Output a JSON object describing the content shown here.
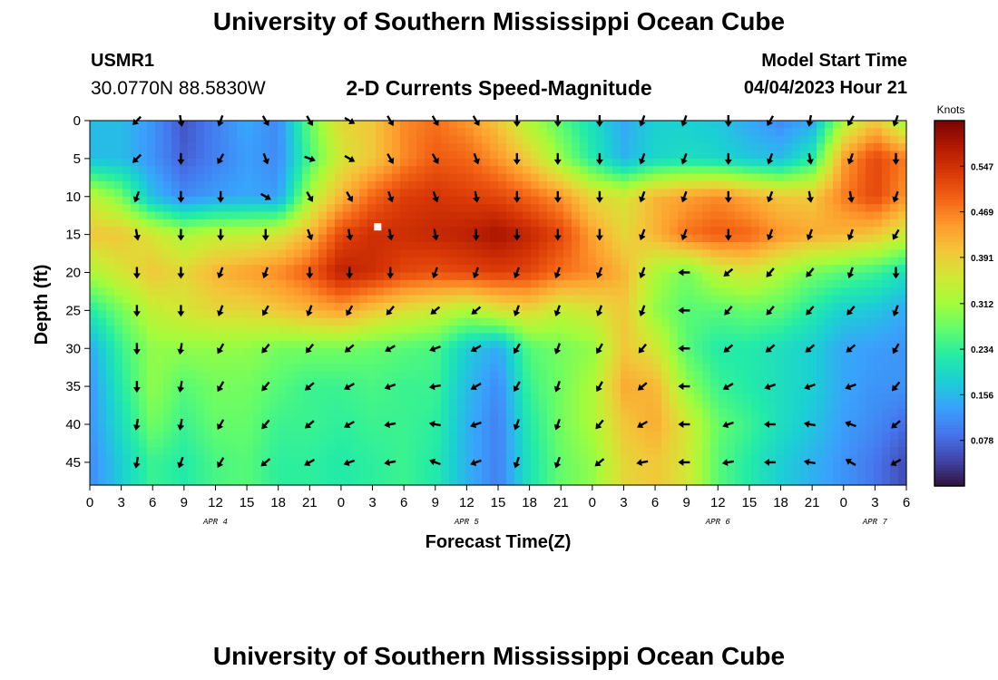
{
  "header": {
    "title": "University of Southern Mississippi Ocean Cube",
    "station": "USMR1",
    "coords": "30.0770N  88.5830W",
    "subtitle": "2-D Currents Speed-Magnitude",
    "model_label": "Model Start Time",
    "model_time": "04/04/2023 Hour 21"
  },
  "footer": {
    "title": "University of Southern Mississippi Ocean Cube"
  },
  "chart_data": {
    "type": "heatmap",
    "title": "2-D Currents Speed-Magnitude",
    "xlabel": "Forecast Time(Z)",
    "ylabel": "Depth (ft)",
    "x_tick_labels": [
      "0",
      "3",
      "6",
      "9",
      "12",
      "15",
      "18",
      "21",
      "0",
      "3",
      "6",
      "9",
      "12",
      "15",
      "18",
      "21",
      "0",
      "3",
      "6",
      "9",
      "12",
      "15",
      "18",
      "21",
      "0",
      "3",
      "6"
    ],
    "x_day_labels": [
      "APR 4",
      "APR 5",
      "APR 6",
      "APR 7"
    ],
    "x_day_label_hours": [
      12,
      36,
      60,
      75
    ],
    "x_range_hours": [
      0,
      78
    ],
    "y_tick_labels": [
      "0",
      "5",
      "10",
      "15",
      "20",
      "25",
      "30",
      "35",
      "40",
      "45"
    ],
    "y_range_ft": [
      0,
      48
    ],
    "colorbar": {
      "label": "Knots",
      "ticks": [
        "0.078",
        "0.156",
        "0.234",
        "0.312",
        "0.391",
        "0.469",
        "0.547"
      ],
      "range": [
        0,
        0.625
      ]
    },
    "colors": {
      "scale": [
        "#30123b",
        "#4145ab",
        "#4675ed",
        "#39a2fc",
        "#1bcfd4",
        "#24eca6",
        "#61fc6c",
        "#a4fc3b",
        "#d1e834",
        "#f3c63a",
        "#fe9b2d",
        "#f36315",
        "#d93806",
        "#b11901",
        "#7a0403"
      ],
      "arrow": "#000000",
      "marker": "#ffffff"
    },
    "grid_hours": [
      0,
      3,
      6,
      9,
      12,
      15,
      18,
      21,
      24,
      27,
      30,
      33,
      36,
      39,
      42,
      45,
      48,
      51,
      54,
      57,
      60,
      63,
      66,
      69,
      72,
      75,
      78
    ],
    "grid_depths_ft": [
      0,
      5,
      10,
      15,
      20,
      25,
      30,
      35,
      40,
      45
    ],
    "speed_knots": [
      [
        0.16,
        0.16,
        0.12,
        0.06,
        0.1,
        0.14,
        0.11,
        0.27,
        0.38,
        0.4,
        0.46,
        0.48,
        0.45,
        0.4,
        0.32,
        0.26,
        0.2,
        0.14,
        0.18,
        0.18,
        0.17,
        0.14,
        0.11,
        0.14,
        0.32,
        0.4,
        0.3
      ],
      [
        0.16,
        0.16,
        0.12,
        0.07,
        0.1,
        0.13,
        0.11,
        0.25,
        0.36,
        0.4,
        0.46,
        0.5,
        0.49,
        0.45,
        0.39,
        0.3,
        0.22,
        0.15,
        0.19,
        0.2,
        0.19,
        0.17,
        0.16,
        0.22,
        0.44,
        0.52,
        0.47
      ],
      [
        0.34,
        0.28,
        0.16,
        0.11,
        0.13,
        0.14,
        0.13,
        0.32,
        0.42,
        0.49,
        0.53,
        0.54,
        0.53,
        0.52,
        0.49,
        0.45,
        0.38,
        0.36,
        0.42,
        0.44,
        0.46,
        0.43,
        0.4,
        0.4,
        0.47,
        0.52,
        0.45
      ],
      [
        0.4,
        0.4,
        0.36,
        0.32,
        0.34,
        0.34,
        0.36,
        0.42,
        0.52,
        0.55,
        0.55,
        0.56,
        0.57,
        0.59,
        0.56,
        0.52,
        0.44,
        0.38,
        0.42,
        0.48,
        0.5,
        0.49,
        0.45,
        0.43,
        0.42,
        0.4,
        0.35
      ],
      [
        0.32,
        0.36,
        0.4,
        0.38,
        0.42,
        0.44,
        0.46,
        0.5,
        0.57,
        0.55,
        0.52,
        0.51,
        0.52,
        0.53,
        0.52,
        0.48,
        0.46,
        0.42,
        0.32,
        0.28,
        0.34,
        0.36,
        0.32,
        0.28,
        0.26,
        0.24,
        0.2
      ],
      [
        0.22,
        0.28,
        0.34,
        0.36,
        0.38,
        0.38,
        0.4,
        0.42,
        0.44,
        0.4,
        0.37,
        0.35,
        0.32,
        0.36,
        0.38,
        0.34,
        0.36,
        0.4,
        0.3,
        0.26,
        0.26,
        0.27,
        0.26,
        0.22,
        0.18,
        0.17,
        0.14
      ],
      [
        0.14,
        0.24,
        0.3,
        0.3,
        0.3,
        0.3,
        0.28,
        0.28,
        0.28,
        0.27,
        0.26,
        0.25,
        0.18,
        0.14,
        0.26,
        0.28,
        0.3,
        0.4,
        0.36,
        0.26,
        0.22,
        0.22,
        0.2,
        0.18,
        0.14,
        0.13,
        0.12
      ],
      [
        0.12,
        0.22,
        0.3,
        0.26,
        0.28,
        0.28,
        0.26,
        0.24,
        0.24,
        0.25,
        0.24,
        0.24,
        0.16,
        0.11,
        0.24,
        0.28,
        0.32,
        0.43,
        0.42,
        0.3,
        0.24,
        0.22,
        0.2,
        0.18,
        0.14,
        0.12,
        0.12
      ],
      [
        0.12,
        0.2,
        0.28,
        0.24,
        0.27,
        0.27,
        0.24,
        0.24,
        0.23,
        0.24,
        0.24,
        0.23,
        0.15,
        0.1,
        0.22,
        0.28,
        0.32,
        0.4,
        0.43,
        0.36,
        0.27,
        0.24,
        0.2,
        0.17,
        0.13,
        0.11,
        0.08
      ],
      [
        0.11,
        0.18,
        0.24,
        0.22,
        0.25,
        0.26,
        0.23,
        0.23,
        0.22,
        0.23,
        0.24,
        0.22,
        0.15,
        0.1,
        0.21,
        0.27,
        0.3,
        0.38,
        0.4,
        0.36,
        0.26,
        0.22,
        0.18,
        0.15,
        0.12,
        0.09,
        0.05
      ]
    ],
    "arrow_hours": [
      4.5,
      8.7,
      12.5,
      16.8,
      21.0,
      24.8,
      28.7,
      33.0,
      36.9,
      40.8,
      44.7,
      48.7,
      52.8,
      56.8,
      61.0,
      65.0,
      68.8,
      72.7,
      77.0
    ],
    "arrow_direction_deg": [
      [
        225,
        170,
        200,
        150,
        150,
        120,
        150,
        150,
        150,
        180,
        180,
        180,
        200,
        200,
        180,
        210,
        190,
        210,
        200
      ],
      [
        225,
        180,
        210,
        160,
        110,
        120,
        150,
        150,
        160,
        180,
        180,
        180,
        200,
        200,
        180,
        200,
        170,
        200,
        180
      ],
      [
        200,
        180,
        180,
        120,
        150,
        150,
        160,
        160,
        170,
        180,
        180,
        180,
        200,
        200,
        180,
        200,
        170,
        170,
        200
      ],
      [
        170,
        180,
        180,
        180,
        160,
        170,
        170,
        170,
        180,
        180,
        180,
        180,
        200,
        200,
        180,
        200,
        200,
        200,
        210
      ],
      [
        180,
        180,
        200,
        200,
        180,
        180,
        180,
        200,
        200,
        200,
        200,
        200,
        200,
        270,
        230,
        220,
        220,
        200,
        180
      ],
      [
        180,
        180,
        200,
        210,
        200,
        210,
        220,
        230,
        230,
        200,
        200,
        200,
        200,
        270,
        220,
        220,
        220,
        220,
        200
      ],
      [
        180,
        190,
        210,
        220,
        220,
        230,
        240,
        250,
        240,
        210,
        200,
        210,
        220,
        270,
        230,
        230,
        230,
        230,
        210
      ],
      [
        180,
        190,
        210,
        220,
        230,
        240,
        250,
        260,
        240,
        210,
        200,
        210,
        230,
        270,
        240,
        250,
        250,
        250,
        220
      ],
      [
        190,
        190,
        210,
        220,
        230,
        240,
        260,
        280,
        250,
        200,
        200,
        220,
        240,
        270,
        250,
        270,
        280,
        290,
        230
      ],
      [
        190,
        200,
        210,
        230,
        240,
        250,
        260,
        290,
        250,
        200,
        200,
        230,
        260,
        270,
        260,
        270,
        280,
        300,
        240
      ]
    ],
    "marker": {
      "hour": 27.5,
      "depth_ft": 14
    }
  }
}
